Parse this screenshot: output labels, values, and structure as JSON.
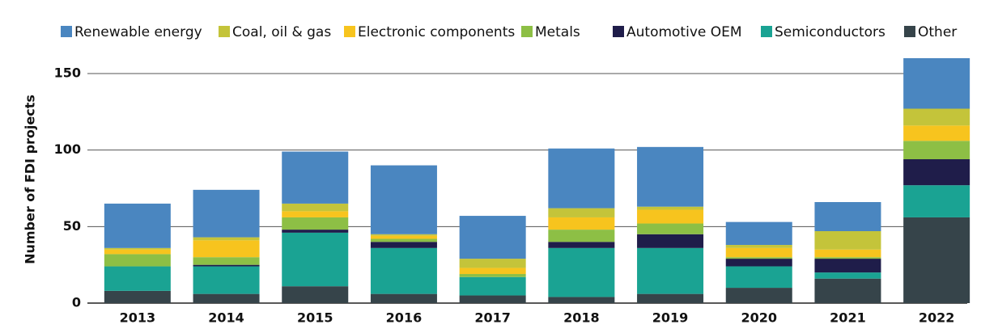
{
  "chart_data": {
    "type": "stacked_bar",
    "y_label": "Number of FDI projects",
    "categories": [
      "2013",
      "2014",
      "2015",
      "2016",
      "2017",
      "2018",
      "2019",
      "2020",
      "2021",
      "2022"
    ],
    "series": [
      {
        "name": "Other",
        "color": "#36444a",
        "values": [
          8,
          6,
          11,
          6,
          5,
          4,
          6,
          10,
          16,
          56
        ]
      },
      {
        "name": "Semiconductors",
        "color": "#1aa393",
        "values": [
          16,
          18,
          35,
          30,
          12,
          32,
          30,
          14,
          4,
          21
        ]
      },
      {
        "name": "Automotive OEM",
        "color": "#1f1d4a",
        "values": [
          0,
          1,
          2,
          4,
          0,
          4,
          9,
          5,
          9,
          17
        ]
      },
      {
        "name": "Metals",
        "color": "#8dbf45",
        "values": [
          8,
          5,
          8,
          2,
          2,
          8,
          7,
          1,
          1,
          12
        ]
      },
      {
        "name": "Electronic components",
        "color": "#f7c41e",
        "values": [
          3,
          11,
          4,
          2,
          4,
          8,
          9,
          6,
          5,
          10
        ]
      },
      {
        "name": "Coal, oil & gas",
        "color": "#c4c43a",
        "values": [
          1,
          2,
          5,
          1,
          6,
          6,
          2,
          2,
          12,
          11
        ]
      },
      {
        "name": "Renewable energy",
        "color": "#4a86c0",
        "values": [
          29,
          31,
          34,
          45,
          28,
          39,
          39,
          15,
          19,
          33
        ]
      }
    ],
    "ylim": [
      0,
      160
    ],
    "yticks": [
      0,
      50,
      100,
      150
    ],
    "grid": true
  }
}
